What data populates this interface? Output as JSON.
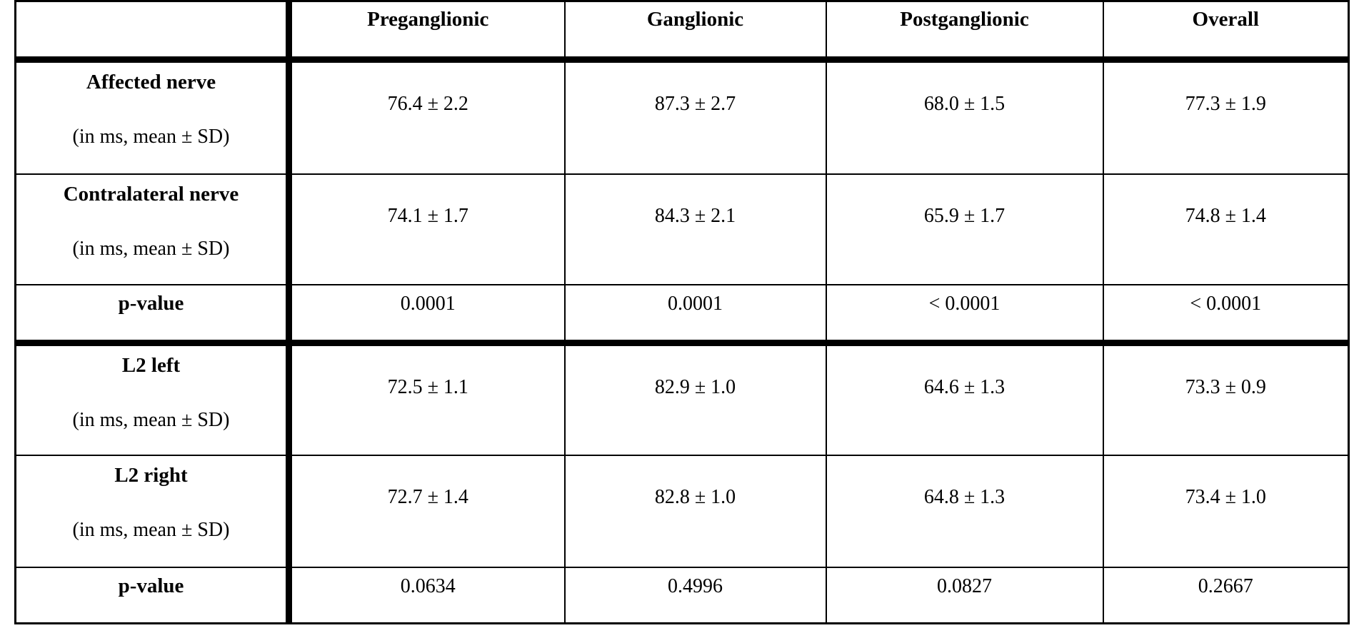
{
  "table": {
    "columns": [
      "",
      "Preganglionic",
      "Ganglionic",
      "Postganglionic",
      "Overall"
    ],
    "rows": [
      {
        "label": "Affected nerve",
        "sublabel": "(in ms, mean ± SD)",
        "values": [
          "76.4 ± 2.2",
          "87.3 ± 2.7",
          "68.0 ± 1.5",
          "77.3 ± 1.9"
        ]
      },
      {
        "label": "Contralateral nerve",
        "sublabel": "(in ms, mean ± SD)",
        "values": [
          "74.1 ± 1.7",
          "84.3 ± 2.1",
          "65.9 ± 1.7",
          "74.8 ± 1.4"
        ]
      },
      {
        "label": "p-value",
        "sublabel": "",
        "values": [
          "0.0001",
          "0.0001",
          "< 0.0001",
          "< 0.0001"
        ]
      },
      {
        "label": "L2 left",
        "sublabel": "(in ms, mean ± SD)",
        "values": [
          "72.5 ± 1.1",
          "82.9 ± 1.0",
          "64.6 ± 1.3",
          "73.3 ± 0.9"
        ]
      },
      {
        "label": "L2 right",
        "sublabel": "(in ms, mean ± SD)",
        "values": [
          "72.7 ± 1.4",
          "82.8 ± 1.0",
          "64.8 ± 1.3",
          "73.4 ± 1.0"
        ]
      },
      {
        "label": "p-value",
        "sublabel": "",
        "values": [
          "0.0634",
          "0.4996",
          "0.0827",
          "0.2667"
        ]
      }
    ]
  },
  "colors": {
    "text": "#000000",
    "border": "#000000",
    "background": "#ffffff"
  }
}
